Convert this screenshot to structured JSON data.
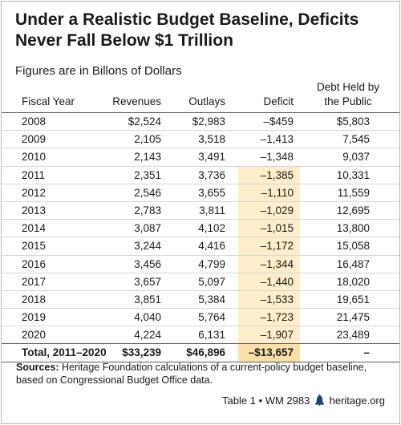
{
  "title": "Under a Realistic Budget Baseline, Deficits Never Fall Below $1 Trillion",
  "subtitle": "Figures are in Billons of Dollars",
  "columns": {
    "fiscal_year": "Fiscal Year",
    "revenues": "Revenues",
    "outlays": "Outlays",
    "deficit": "Deficit",
    "debt_line1": "Debt Held by",
    "debt_line2": "the Public"
  },
  "highlight_color": "#fdedcb",
  "chart_data": {
    "type": "table",
    "title": "Under a Realistic Budget Baseline, Deficits Never Fall Below $1 Trillion",
    "subtitle": "Figures are in Billons of Dollars",
    "columns": [
      "Fiscal Year",
      "Revenues",
      "Outlays",
      "Deficit",
      "Debt Held by the Public"
    ],
    "rows": [
      {
        "year": "2008",
        "revenues": "$2,524",
        "outlays": "$2,983",
        "deficit": "–$459",
        "debt": "$5,803"
      },
      {
        "year": "2009",
        "revenues": "2,105",
        "outlays": "3,518",
        "deficit": "–1,413",
        "debt": "7,545"
      },
      {
        "year": "2010",
        "revenues": "2,143",
        "outlays": "3,491",
        "deficit": "–1,348",
        "debt": "9,037"
      },
      {
        "year": "2011",
        "revenues": "2,351",
        "outlays": "3,736",
        "deficit": "–1,385",
        "debt": "10,331"
      },
      {
        "year": "2012",
        "revenues": "2,546",
        "outlays": "3,655",
        "deficit": "–1,110",
        "debt": "11,559"
      },
      {
        "year": "2013",
        "revenues": "2,783",
        "outlays": "3,811",
        "deficit": "–1,029",
        "debt": "12,695"
      },
      {
        "year": "2014",
        "revenues": "3,087",
        "outlays": "4,102",
        "deficit": "–1,015",
        "debt": "13,800"
      },
      {
        "year": "2015",
        "revenues": "3,244",
        "outlays": "4,416",
        "deficit": "–1,172",
        "debt": "15,058"
      },
      {
        "year": "2016",
        "revenues": "3,456",
        "outlays": "4,799",
        "deficit": "–1,344",
        "debt": "16,487"
      },
      {
        "year": "2017",
        "revenues": "3,657",
        "outlays": "5,097",
        "deficit": "–1,440",
        "debt": "18,020"
      },
      {
        "year": "2018",
        "revenues": "3,851",
        "outlays": "5,384",
        "deficit": "–1,533",
        "debt": "19,651"
      },
      {
        "year": "2019",
        "revenues": "4,040",
        "outlays": "5,764",
        "deficit": "–1,723",
        "debt": "21,475"
      },
      {
        "year": "2020",
        "revenues": "4,224",
        "outlays": "6,131",
        "deficit": "–1,907",
        "debt": "23,489"
      }
    ],
    "total": {
      "year": "Total, 2011–2020",
      "revenues": "$33,239",
      "outlays": "$46,896",
      "deficit": "–$13,657",
      "debt": "–"
    }
  },
  "sources": {
    "label": "Sources:",
    "text": "Heritage Foundation calculations of a current-policy budget baseline, based on Congressional Budget Office data."
  },
  "footer": {
    "left": "Table 1 • WM 2983",
    "right": "heritage.org",
    "icon": "liberty-bell-icon"
  }
}
